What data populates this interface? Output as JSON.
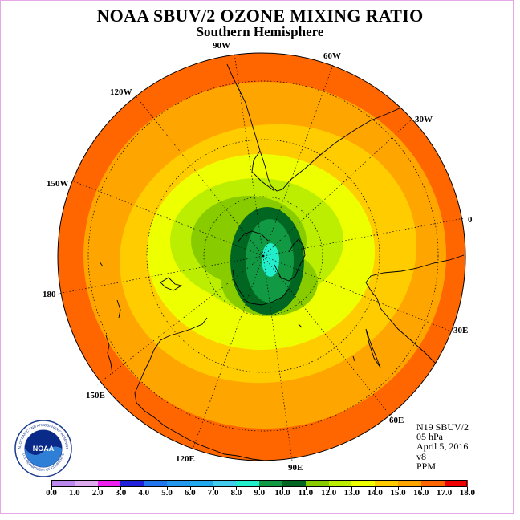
{
  "title": "NOAA SBUV/2 OZONE MIXING RATIO",
  "subtitle": "Southern Hemisphere",
  "info": {
    "satellite": "N19 SBUV/2",
    "level": "05 hPa",
    "date": "April 5, 2016",
    "version": "v8",
    "units": "PPM"
  },
  "longitude_labels": [
    "0",
    "30E",
    "60E",
    "90E",
    "120E",
    "150E",
    "180",
    "150W",
    "120W",
    "90W",
    "60W",
    "30W"
  ],
  "colorbar": {
    "labels": [
      "0.0",
      "1.0",
      "2.0",
      "3.0",
      "4.0",
      "5.0",
      "6.0",
      "7.0",
      "8.0",
      "9.0",
      "10.0",
      "11.0",
      "12.0",
      "13.0",
      "14.0",
      "15.0",
      "16.0",
      "17.0",
      "18.0"
    ],
    "colors": [
      "#bb88ee",
      "#ddaaee",
      "#ee22ee",
      "#2222dd",
      "#2277ee",
      "#2299ee",
      "#22aaee",
      "#44ccee",
      "#22eecc",
      "#119944",
      "#006622",
      "#88cc00",
      "#bbee00",
      "#eeff00",
      "#ffcc00",
      "#ffa500",
      "#ff6600",
      "#ee0000",
      "#996633"
    ]
  },
  "logo": {
    "text": "NOAA",
    "ring_text_top": "NATIONAL OCEANIC AND ATMOSPHERIC ADMINISTRATION",
    "ring_text_bottom": "U.S. DEPARTMENT OF COMMERCE"
  }
}
